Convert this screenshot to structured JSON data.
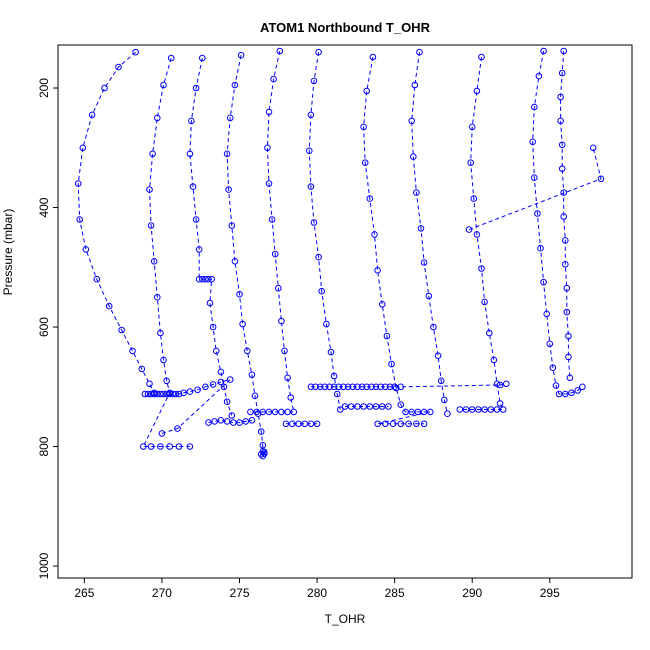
{
  "chart": {
    "title": "ATOM1 Northbound T_OHR",
    "xlabel": "T_OHR",
    "ylabel": "Pressure (mbar)"
  },
  "chart_data": {
    "type": "line",
    "title": "ATOM1 Northbound T_OHR",
    "xlabel": "T_OHR",
    "ylabel": "Pressure (mbar)",
    "xlim": [
      263.3,
      300.3
    ],
    "ylim": [
      1020,
      128
    ],
    "y_axis_reversed": true,
    "xticks": [
      265,
      270,
      275,
      280,
      285,
      290,
      295
    ],
    "yticks": [
      200,
      400,
      600,
      800,
      1000
    ],
    "marker": "open-circle",
    "line_style": "dashed",
    "color": "#0000FF",
    "grid": false,
    "legend": "none",
    "series": [
      {
        "name": "profile-1",
        "points": [
          [
            268.3,
            140
          ],
          [
            267.2,
            165
          ],
          [
            266.3,
            200
          ],
          [
            265.5,
            245
          ],
          [
            264.9,
            300
          ],
          [
            264.6,
            360
          ],
          [
            264.7,
            420
          ],
          [
            265.1,
            470
          ],
          [
            265.8,
            520
          ],
          [
            266.6,
            565
          ],
          [
            267.4,
            605
          ],
          [
            268.1,
            640
          ],
          [
            268.7,
            670
          ],
          [
            269.2,
            695
          ],
          [
            269.5,
            710
          ]
        ]
      },
      {
        "name": "profile-2",
        "points": [
          [
            270.6,
            150
          ],
          [
            270.1,
            195
          ],
          [
            269.7,
            250
          ],
          [
            269.4,
            310
          ],
          [
            269.2,
            370
          ],
          [
            269.3,
            430
          ],
          [
            269.5,
            490
          ],
          [
            269.7,
            550
          ],
          [
            269.9,
            610
          ],
          [
            270.1,
            655
          ],
          [
            270.3,
            690
          ],
          [
            270.5,
            710
          ],
          [
            268.8,
            800
          ],
          [
            269.3,
            800
          ],
          [
            269.9,
            800
          ],
          [
            270.5,
            800
          ],
          [
            271.1,
            800
          ],
          [
            271.8,
            800
          ]
        ]
      },
      {
        "name": "profile-3",
        "points": [
          [
            270.0,
            778
          ],
          [
            271.0,
            770
          ],
          [
            274.4,
            688
          ],
          [
            273.8,
            692
          ],
          [
            273.3,
            696
          ],
          [
            272.8,
            700
          ],
          [
            272.3,
            705
          ],
          [
            271.8,
            708
          ],
          [
            271.4,
            710
          ],
          [
            271.1,
            712
          ],
          [
            270.9,
            712
          ],
          [
            270.7,
            712
          ],
          [
            270.5,
            712
          ],
          [
            270.3,
            712
          ],
          [
            270.1,
            712
          ],
          [
            269.9,
            712
          ],
          [
            269.7,
            712
          ],
          [
            269.5,
            712
          ],
          [
            269.3,
            712
          ],
          [
            269.1,
            712
          ],
          [
            268.9,
            712
          ]
        ]
      },
      {
        "name": "profile-4",
        "points": [
          [
            272.6,
            150
          ],
          [
            272.2,
            200
          ],
          [
            271.9,
            255
          ],
          [
            271.8,
            310
          ],
          [
            272.0,
            365
          ],
          [
            272.2,
            420
          ],
          [
            272.4,
            470
          ],
          [
            272.4,
            520
          ],
          [
            272.6,
            520
          ],
          [
            272.8,
            520
          ],
          [
            273.0,
            520
          ],
          [
            273.2,
            520
          ],
          [
            273.1,
            560
          ],
          [
            273.3,
            600
          ],
          [
            273.5,
            640
          ],
          [
            273.8,
            675
          ],
          [
            274.0,
            700
          ],
          [
            274.2,
            725
          ],
          [
            274.5,
            748
          ]
        ]
      },
      {
        "name": "profile-5",
        "points": [
          [
            275.1,
            145
          ],
          [
            274.7,
            195
          ],
          [
            274.4,
            250
          ],
          [
            274.2,
            310
          ],
          [
            274.3,
            370
          ],
          [
            274.5,
            430
          ],
          [
            274.7,
            490
          ],
          [
            275.0,
            545
          ],
          [
            275.2,
            595
          ],
          [
            275.5,
            640
          ],
          [
            275.8,
            680
          ],
          [
            276.0,
            715
          ],
          [
            276.2,
            745
          ],
          [
            276.4,
            775
          ],
          [
            276.5,
            798
          ],
          [
            276.5,
            808
          ],
          [
            276.6,
            812
          ],
          [
            276.5,
            816
          ],
          [
            276.6,
            809
          ],
          [
            276.4,
            813
          ]
        ]
      },
      {
        "name": "profile-6",
        "points": [
          [
            277.6,
            138
          ],
          [
            277.2,
            185
          ],
          [
            276.9,
            240
          ],
          [
            276.8,
            300
          ],
          [
            276.9,
            360
          ],
          [
            277.1,
            420
          ],
          [
            277.3,
            478
          ],
          [
            277.5,
            535
          ],
          [
            277.7,
            590
          ],
          [
            277.9,
            640
          ],
          [
            278.1,
            685
          ],
          [
            278.3,
            718
          ],
          [
            278.5,
            742
          ],
          [
            278.1,
            742
          ],
          [
            277.7,
            742
          ],
          [
            277.3,
            742
          ],
          [
            276.9,
            742
          ],
          [
            276.5,
            742
          ],
          [
            276.1,
            742
          ],
          [
            275.7,
            742
          ]
        ]
      },
      {
        "name": "profile-7",
        "points": [
          [
            279.6,
            700
          ],
          [
            279.9,
            700
          ],
          [
            280.2,
            700
          ],
          [
            280.5,
            700
          ],
          [
            280.8,
            700
          ],
          [
            281.1,
            700
          ],
          [
            281.4,
            700
          ],
          [
            281.7,
            700
          ],
          [
            282.0,
            700
          ],
          [
            282.3,
            700
          ],
          [
            282.6,
            700
          ],
          [
            282.9,
            700
          ],
          [
            283.2,
            700
          ],
          [
            283.5,
            700
          ],
          [
            283.8,
            700
          ],
          [
            284.1,
            700
          ],
          [
            284.4,
            700
          ],
          [
            284.7,
            700
          ],
          [
            285.0,
            700
          ],
          [
            285.4,
            700
          ],
          [
            291.8,
            697
          ],
          [
            292.2,
            695
          ]
        ]
      },
      {
        "name": "profile-8",
        "points": [
          [
            280.1,
            140
          ],
          [
            279.8,
            188
          ],
          [
            279.6,
            245
          ],
          [
            279.5,
            305
          ],
          [
            279.6,
            365
          ],
          [
            279.8,
            425
          ],
          [
            280.1,
            483
          ],
          [
            280.3,
            540
          ],
          [
            280.6,
            595
          ],
          [
            280.9,
            642
          ],
          [
            281.1,
            682
          ],
          [
            281.3,
            712
          ],
          [
            281.5,
            738
          ]
        ]
      },
      {
        "name": "profile-9",
        "points": [
          [
            283.6,
            148
          ],
          [
            283.2,
            205
          ],
          [
            283.0,
            265
          ],
          [
            283.1,
            325
          ],
          [
            283.4,
            385
          ],
          [
            283.7,
            445
          ],
          [
            283.9,
            505
          ],
          [
            284.2,
            562
          ],
          [
            284.5,
            615
          ],
          [
            284.8,
            662
          ],
          [
            285.1,
            702
          ],
          [
            285.4,
            730
          ],
          [
            285.7,
            742
          ],
          [
            286.1,
            742
          ],
          [
            286.5,
            742
          ],
          [
            286.9,
            742
          ],
          [
            287.3,
            742
          ],
          [
            283.9,
            762
          ],
          [
            284.4,
            762
          ],
          [
            284.9,
            762
          ],
          [
            285.4,
            762
          ],
          [
            285.9,
            762
          ],
          [
            286.4,
            762
          ],
          [
            286.9,
            762
          ]
        ]
      },
      {
        "name": "profile-10",
        "points": [
          [
            286.6,
            140
          ],
          [
            286.3,
            195
          ],
          [
            286.1,
            255
          ],
          [
            286.2,
            315
          ],
          [
            286.4,
            375
          ],
          [
            286.7,
            435
          ],
          [
            286.9,
            492
          ],
          [
            287.2,
            548
          ],
          [
            287.5,
            600
          ],
          [
            287.8,
            648
          ],
          [
            288.0,
            690
          ],
          [
            288.2,
            722
          ],
          [
            288.4,
            745
          ]
        ]
      },
      {
        "name": "profile-11",
        "points": [
          [
            290.6,
            148
          ],
          [
            290.3,
            205
          ],
          [
            290.0,
            265
          ],
          [
            289.9,
            325
          ],
          [
            290.1,
            385
          ],
          [
            290.3,
            445
          ],
          [
            290.6,
            502
          ],
          [
            290.8,
            558
          ],
          [
            291.1,
            610
          ],
          [
            291.4,
            655
          ],
          [
            291.6,
            695
          ],
          [
            291.8,
            728
          ],
          [
            292.0,
            738
          ],
          [
            291.6,
            738
          ],
          [
            291.2,
            738
          ],
          [
            290.8,
            738
          ],
          [
            290.4,
            738
          ],
          [
            290.0,
            738
          ],
          [
            289.6,
            738
          ],
          [
            289.2,
            738
          ]
        ]
      },
      {
        "name": "profile-12",
        "points": [
          [
            294.6,
            138
          ],
          [
            294.3,
            180
          ],
          [
            294.0,
            232
          ],
          [
            293.9,
            290
          ],
          [
            294.0,
            350
          ],
          [
            294.2,
            410
          ],
          [
            294.4,
            468
          ],
          [
            294.6,
            525
          ],
          [
            294.8,
            578
          ],
          [
            295.0,
            628
          ],
          [
            295.2,
            668
          ],
          [
            295.4,
            698
          ],
          [
            295.6,
            712
          ],
          [
            296.0,
            712
          ],
          [
            296.4,
            710
          ],
          [
            296.8,
            706
          ],
          [
            297.1,
            700
          ]
        ]
      },
      {
        "name": "profile-13",
        "points": [
          [
            295.9,
            138
          ],
          [
            295.8,
            175
          ],
          [
            295.7,
            215
          ],
          [
            295.7,
            255
          ],
          [
            295.8,
            295
          ],
          [
            295.8,
            335
          ],
          [
            295.9,
            375
          ],
          [
            295.9,
            415
          ],
          [
            296.0,
            455
          ],
          [
            296.0,
            495
          ],
          [
            296.1,
            535
          ],
          [
            296.1,
            575
          ],
          [
            296.2,
            615
          ],
          [
            296.2,
            650
          ],
          [
            296.3,
            685
          ]
        ]
      },
      {
        "name": "profile-14",
        "points": [
          [
            289.8,
            437
          ],
          [
            298.3,
            352
          ],
          [
            297.8,
            300
          ]
        ]
      },
      {
        "name": "profile-15",
        "points": [
          [
            281.8,
            733
          ],
          [
            282.2,
            733
          ],
          [
            282.6,
            733
          ],
          [
            283.0,
            733
          ],
          [
            283.4,
            733
          ],
          [
            283.8,
            733
          ],
          [
            284.2,
            733
          ],
          [
            284.6,
            733
          ]
        ]
      },
      {
        "name": "profile-16",
        "points": [
          [
            278.0,
            762
          ],
          [
            278.4,
            762
          ],
          [
            278.8,
            762
          ],
          [
            279.2,
            762
          ],
          [
            279.6,
            762
          ],
          [
            280.0,
            762
          ]
        ]
      },
      {
        "name": "profile-17",
        "points": [
          [
            273.0,
            760
          ],
          [
            273.4,
            758
          ],
          [
            273.8,
            756
          ],
          [
            274.2,
            758
          ],
          [
            274.6,
            760
          ],
          [
            275.0,
            760
          ],
          [
            275.4,
            758
          ],
          [
            275.8,
            756
          ]
        ]
      }
    ]
  }
}
